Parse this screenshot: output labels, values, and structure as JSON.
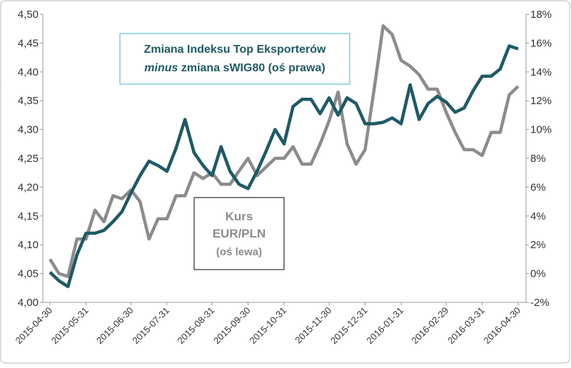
{
  "chart_data": {
    "type": "line",
    "categories": [
      "2015-04-30",
      null,
      null,
      null,
      "2015-05-31",
      null,
      null,
      null,
      null,
      "2015-06-30",
      null,
      null,
      null,
      "2015-07-31",
      null,
      null,
      null,
      null,
      "2015-08-31",
      null,
      null,
      null,
      "2015-09-30",
      null,
      null,
      null,
      "2015-10-31",
      null,
      null,
      null,
      null,
      "2015-11-30",
      null,
      null,
      null,
      "2015-12-31",
      null,
      null,
      null,
      "2016-01-31",
      null,
      null,
      null,
      null,
      "2016-02-29",
      null,
      null,
      null,
      "2016-03-31",
      null,
      null,
      null,
      "2016-04-30"
    ],
    "series": [
      {
        "color": "#8c8c8c",
        "values": [
          4.075,
          4.05,
          4.045,
          4.11,
          4.11,
          4.16,
          4.14,
          4.185,
          4.18,
          4.195,
          4.175,
          4.11,
          4.145,
          4.145,
          4.185,
          4.185,
          4.225,
          4.215,
          4.225,
          4.205,
          4.205,
          4.228,
          4.25,
          4.22,
          4.235,
          4.25,
          4.25,
          4.27,
          4.24,
          4.24,
          4.275,
          4.315,
          4.365,
          4.275,
          4.24,
          4.265,
          4.37,
          4.48,
          4.465,
          4.42,
          4.41,
          4.395,
          4.37,
          4.37,
          4.33,
          4.295,
          4.265,
          4.265,
          4.255,
          4.295,
          4.295,
          4.36,
          4.375
        ]
      },
      {
        "color": "#1e5a66",
        "axis": "y2",
        "values": [
          0.1,
          -0.5,
          -0.9,
          1.3,
          2.8,
          2.8,
          3.0,
          3.6,
          4.3,
          5.6,
          6.8,
          7.8,
          7.5,
          7.1,
          8.7,
          10.7,
          8.4,
          7.5,
          6.8,
          8.8,
          7.1,
          6.2,
          5.9,
          7.1,
          8.5,
          10.0,
          9.0,
          11.6,
          12.1,
          12.1,
          11.1,
          12.2,
          11.0,
          12.2,
          11.8,
          10.4,
          10.4,
          10.5,
          10.8,
          10.4,
          13.1,
          10.7,
          11.8,
          12.3,
          11.9,
          11.2,
          11.5,
          12.7,
          13.7,
          13.7,
          14.2,
          15.8,
          15.6
        ]
      }
    ],
    "ylim": [
      4.0,
      4.5
    ],
    "yticks": [
      {
        "value": 4.0,
        "label": "4,00"
      },
      {
        "value": 4.05,
        "label": "4,05"
      },
      {
        "value": 4.1,
        "label": "4,10"
      },
      {
        "value": 4.15,
        "label": "4,15"
      },
      {
        "value": 4.2,
        "label": "4,20"
      },
      {
        "value": 4.25,
        "label": "4,25"
      },
      {
        "value": 4.3,
        "label": "4,30"
      },
      {
        "value": 4.35,
        "label": "4,35"
      },
      {
        "value": 4.4,
        "label": "4,40"
      },
      {
        "value": 4.45,
        "label": "4,45"
      },
      {
        "value": 4.5,
        "label": "4,50"
      }
    ],
    "y2lim": [
      -2,
      18
    ],
    "y2ticks": [
      {
        "value": -2,
        "label": "-2%"
      },
      {
        "value": 0,
        "label": "0%"
      },
      {
        "value": 2,
        "label": "2%"
      },
      {
        "value": 4,
        "label": "4%"
      },
      {
        "value": 6,
        "label": "6%"
      },
      {
        "value": 8,
        "label": "8%"
      },
      {
        "value": 10,
        "label": "10%"
      },
      {
        "value": 12,
        "label": "12%"
      },
      {
        "value": 14,
        "label": "14%"
      },
      {
        "value": 16,
        "label": "16%"
      },
      {
        "value": 18,
        "label": "18%"
      }
    ],
    "grid": false,
    "annotations": [
      {
        "line1": "Zmiana Indeksu Top Eksporterów",
        "line2_emphasis": "minus",
        "line2": "zmiana sWIG80 (oś prawa)"
      },
      {
        "lines": [
          "Kurs",
          "EUR/PLN",
          "(oś lewa)"
        ]
      }
    ]
  }
}
